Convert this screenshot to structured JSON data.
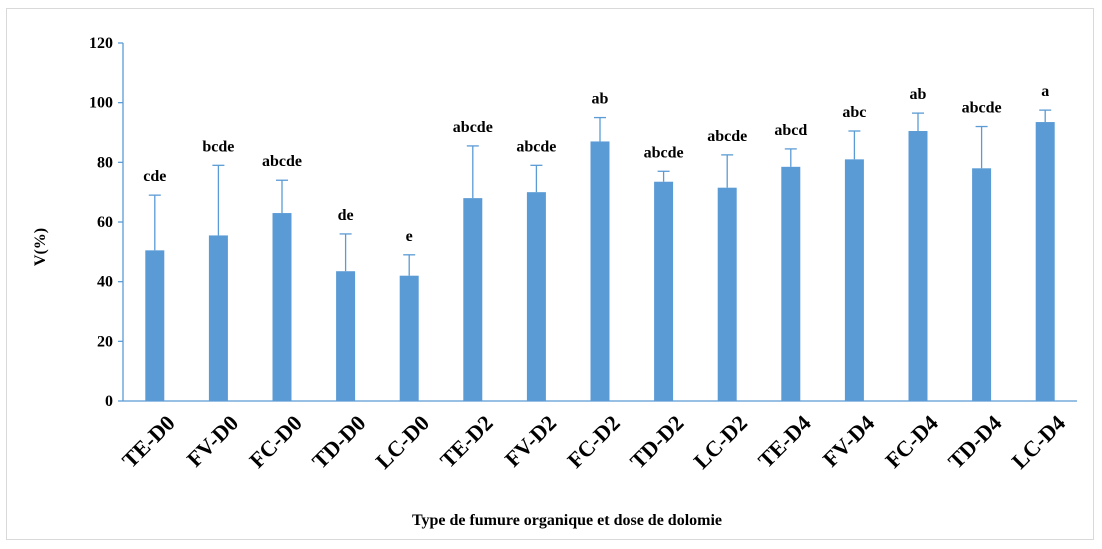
{
  "chart_data": {
    "type": "bar",
    "title": "",
    "xlabel": "Type de fumure organique et dose de dolomie",
    "ylabel": "V(%)",
    "ylim": [
      0,
      120
    ],
    "yticks": [
      "0",
      "20",
      "40",
      "60",
      "80",
      "100",
      "120"
    ],
    "grid": false,
    "legend": "none",
    "bar_color": "#5b9bd5",
    "categories": [
      "TE-D0",
      "FV-D0",
      "FC-D0",
      "TD-D0",
      "LC-D0",
      "TE-D2",
      "FV-D2",
      "FC-D2",
      "TD-D2",
      "LC-D2",
      "TE-D4",
      "FV-D4",
      "FC-D4",
      "TD-D4",
      "LC-D4"
    ],
    "values": [
      50.5,
      55.5,
      63,
      43.5,
      42,
      68,
      70,
      87,
      73.5,
      71.5,
      78.5,
      81,
      90.5,
      78,
      93.5
    ],
    "error": [
      18.5,
      23.5,
      11,
      12.5,
      7,
      17.5,
      9,
      8,
      3.5,
      11,
      6,
      9.5,
      6,
      14,
      4
    ],
    "labels": [
      "cde",
      "bcde",
      "abcde",
      "de",
      "e",
      "abcde",
      "abcde",
      "ab",
      "abcde",
      "abcde",
      "abcd",
      "abc",
      "ab",
      "abcde",
      "a"
    ]
  }
}
